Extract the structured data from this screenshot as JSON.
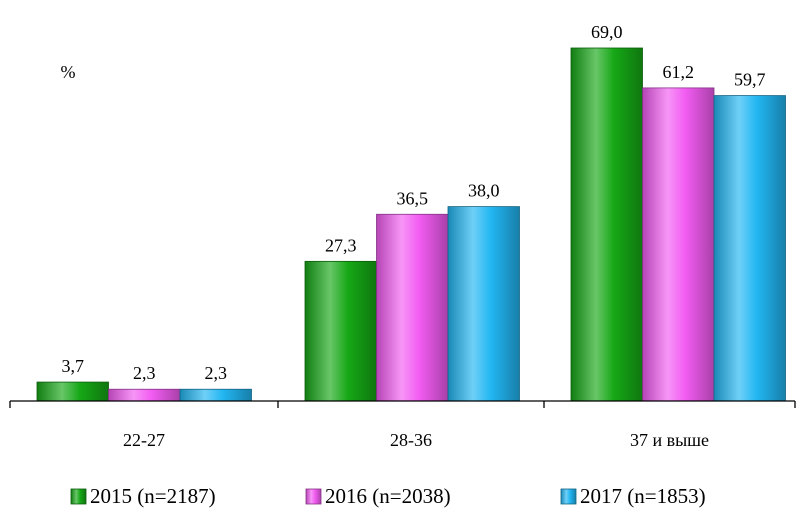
{
  "chart_data": {
    "type": "bar",
    "unit_label": "%",
    "categories": [
      "22-27",
      "28-36",
      "37 и выше"
    ],
    "series": [
      {
        "name": "2015 (n=2187)",
        "color": "#16a816",
        "values": [
          3.7,
          27.3,
          69.0
        ],
        "labels": [
          "3,7",
          "27,3",
          "69,0"
        ]
      },
      {
        "name": "2016 (n=2038)",
        "color": "#f25cf2",
        "values": [
          2.3,
          36.5,
          61.2
        ],
        "labels": [
          "2,3",
          "36,5",
          "61,2"
        ]
      },
      {
        "name": "2017 (n=1853)",
        "color": "#22b6f2",
        "values": [
          2.3,
          38.0,
          59.7
        ],
        "labels": [
          "2,3",
          "38,0",
          "59,7"
        ]
      }
    ],
    "ylim": [
      0,
      69
    ],
    "grid": false,
    "legend_position": "bottom"
  }
}
